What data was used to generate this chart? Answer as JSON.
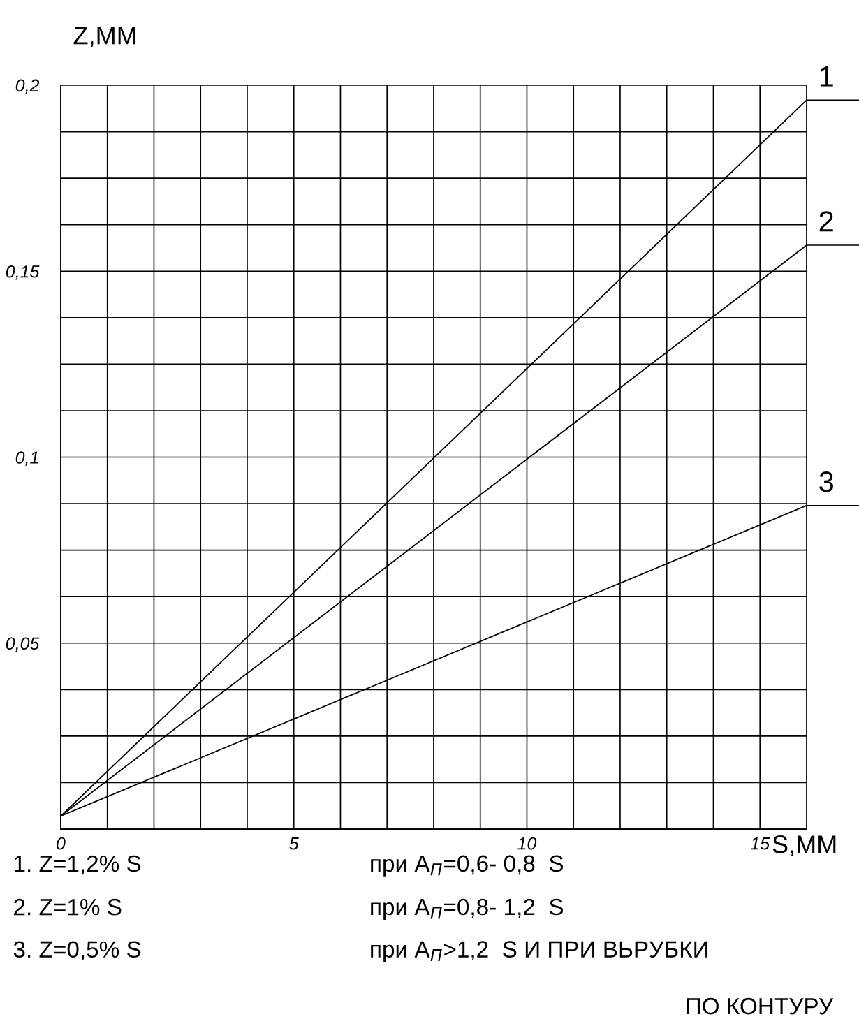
{
  "chart_data": {
    "type": "line",
    "ylabel": "Z,ММ",
    "xlabel": "S,ММ",
    "xlim": [
      0,
      16
    ],
    "ylim": [
      0,
      0.2
    ],
    "xticks": [
      0,
      {
        "value": 1,
        "label": null
      },
      {
        "value": 2,
        "label": null
      },
      {
        "value": 3,
        "label": null
      },
      {
        "value": 4,
        "label": null
      },
      5,
      {
        "value": 6,
        "label": null
      },
      {
        "value": 7,
        "label": null
      },
      {
        "value": 8,
        "label": null
      },
      {
        "value": 9,
        "label": null
      },
      10,
      {
        "value": 11,
        "label": null
      },
      {
        "value": 12,
        "label": null
      },
      {
        "value": 13,
        "label": null
      },
      {
        "value": 14,
        "label": null
      },
      15,
      {
        "value": 16,
        "label": null
      }
    ],
    "yticks": [
      {
        "value": 0,
        "label": null
      },
      {
        "value": 0.0125,
        "label": null
      },
      {
        "value": 0.025,
        "label": null
      },
      {
        "value": 0.0375,
        "label": null
      },
      {
        "value": 0.05,
        "label": "0,05"
      },
      {
        "value": 0.0625,
        "label": null
      },
      {
        "value": 0.075,
        "label": null
      },
      {
        "value": 0.0875,
        "label": null
      },
      {
        "value": 0.1,
        "label": "0,1"
      },
      {
        "value": 0.1125,
        "label": null
      },
      {
        "value": 0.125,
        "label": null
      },
      {
        "value": 0.1375,
        "label": null
      },
      {
        "value": 0.15,
        "label": "0,15"
      },
      {
        "value": 0.1625,
        "label": null
      },
      {
        "value": 0.175,
        "label": null
      },
      {
        "value": 0.1875,
        "label": null
      },
      {
        "value": 0.2,
        "label": "0,2"
      }
    ],
    "grid": true,
    "legend": false,
    "x": [
      0,
      16
    ],
    "series": [
      {
        "name": "1",
        "color": "#000000",
        "values": [
          0.0035,
          0.196
        ]
      },
      {
        "name": "2",
        "color": "#000000",
        "values": [
          0.0035,
          0.157
        ]
      },
      {
        "name": "3",
        "color": "#000000",
        "values": [
          0.0035,
          0.087
        ]
      }
    ],
    "annotations": [
      "1. Z=1,2% S",
      "2. Z=1% S",
      "3. Z=0,5% S",
      "при A$_{П}$=0,6- 0,8  S",
      "при A$_{П}$=0,8- 1,2  S",
      "при A$_{П}$>1,2  S И ПРИ ВЬРУБКИ",
      "ПО КОНТУРУ"
    ]
  }
}
